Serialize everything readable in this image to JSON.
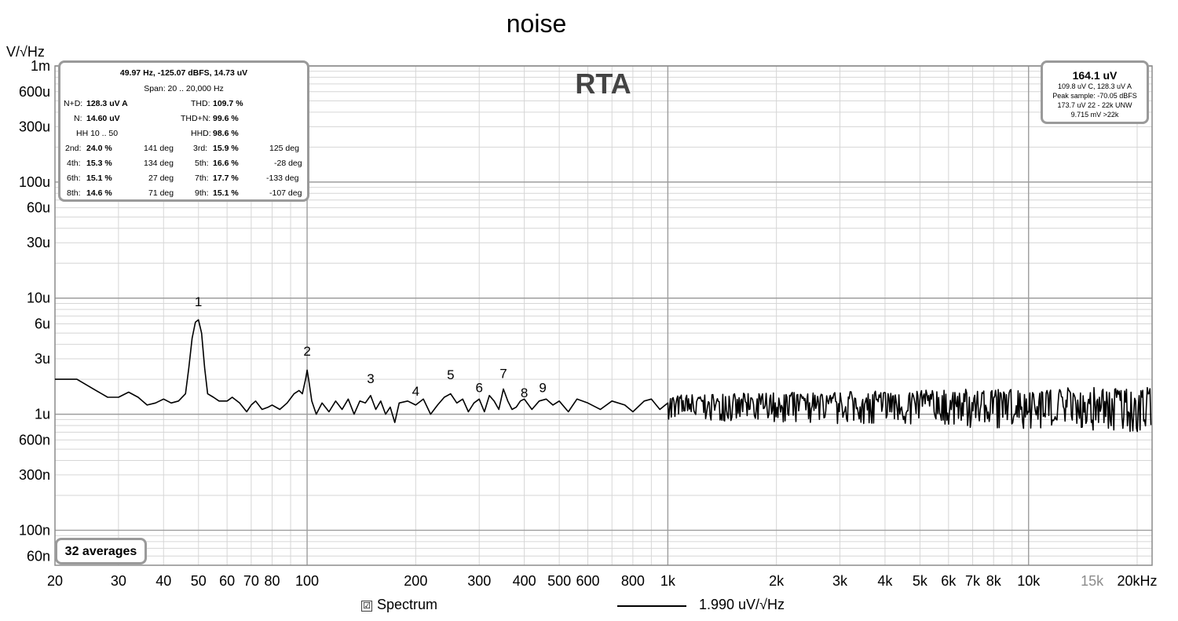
{
  "window": {
    "title": "noise",
    "unit_label": "V/√Hz",
    "graph_type": "RTA"
  },
  "stats_box": {
    "cursor": "49.97 Hz, -125.07 dBFS, 14.73 uV",
    "span": "Span: 20 .. 20,000 Hz",
    "nd_label": "N+D:",
    "nd_value": "128.3 uV A",
    "thd_label": "THD:",
    "thd_value": "109.7 %",
    "n_label": "N:",
    "n_value": "14.60 uV",
    "thdn_label": "THD+N:",
    "thdn_value": "99.6 %",
    "hh_label": "HH 10 .. 50",
    "hhd_label": "HHD:",
    "hhd_value": "98.6 %",
    "harmonics": [
      {
        "a_label": "2nd:",
        "a_value": "24.0 %",
        "a_phase": "141 deg",
        "b_label": "3rd:",
        "b_value": "15.9 %",
        "b_phase": "125 deg"
      },
      {
        "a_label": "4th:",
        "a_value": "15.3 %",
        "a_phase": "134 deg",
        "b_label": "5th:",
        "b_value": "16.6 %",
        "b_phase": "-28 deg"
      },
      {
        "a_label": "6th:",
        "a_value": "15.1 %",
        "a_phase": "27 deg",
        "b_label": "7th:",
        "b_value": "17.7 %",
        "b_phase": "-133 deg"
      },
      {
        "a_label": "8th:",
        "a_value": "14.6 %",
        "a_phase": "71 deg",
        "b_label": "9th:",
        "b_value": "15.1 %",
        "b_phase": "-107 deg"
      }
    ]
  },
  "rms_box": {
    "main": "164.1 uV",
    "line1": "109.8 uV C, 128.3 uV A",
    "line2": "Peak sample: -70.05 dBFS",
    "line3": "173.7 uV 22 - 22k UNW",
    "line4": "9.715 mV >22k"
  },
  "averages_label": "32 averages",
  "legend": {
    "checkbox_glyph": "☑",
    "series_name": "Spectrum",
    "series_value": "1.990 uV/√Hz"
  },
  "colors": {
    "trace": "#000000",
    "major_grid": "#9e9e9e",
    "minor_grid": "#d6d6d6",
    "box_border": "#9a9a9a",
    "dim_tick": "#8c8c8c"
  },
  "chart_data": {
    "type": "line",
    "x_scale": "log",
    "y_scale": "log",
    "xlim": [
      20,
      22000
    ],
    "ylim": [
      5e-08,
      0.001
    ],
    "x_unit": "Hz",
    "y_unit": "V/√Hz",
    "grid": true,
    "x_ticks": [
      {
        "value": 20,
        "label": "20"
      },
      {
        "value": 30,
        "label": "30"
      },
      {
        "value": 40,
        "label": "40"
      },
      {
        "value": 50,
        "label": "50"
      },
      {
        "value": 60,
        "label": "60"
      },
      {
        "value": 70,
        "label": "70"
      },
      {
        "value": 80,
        "label": "80"
      },
      {
        "value": 100,
        "label": "100"
      },
      {
        "value": 200,
        "label": "200"
      },
      {
        "value": 300,
        "label": "300"
      },
      {
        "value": 400,
        "label": "400"
      },
      {
        "value": 500,
        "label": "500"
      },
      {
        "value": 600,
        "label": "600"
      },
      {
        "value": 800,
        "label": "800"
      },
      {
        "value": 1000,
        "label": "1k"
      },
      {
        "value": 2000,
        "label": "2k"
      },
      {
        "value": 3000,
        "label": "3k"
      },
      {
        "value": 4000,
        "label": "4k"
      },
      {
        "value": 5000,
        "label": "5k"
      },
      {
        "value": 6000,
        "label": "6k"
      },
      {
        "value": 7000,
        "label": "7k"
      },
      {
        "value": 8000,
        "label": "8k"
      },
      {
        "value": 10000,
        "label": "10k"
      },
      {
        "value": 15000,
        "label": "15k",
        "dim": true
      },
      {
        "value": 20000,
        "label": "20kHz"
      }
    ],
    "y_ticks": [
      {
        "value": 0.001,
        "label": "1m"
      },
      {
        "value": 0.0006,
        "label": "600u"
      },
      {
        "value": 0.0003,
        "label": "300u"
      },
      {
        "value": 0.0001,
        "label": "100u"
      },
      {
        "value": 6e-05,
        "label": "60u"
      },
      {
        "value": 3e-05,
        "label": "30u"
      },
      {
        "value": 1e-05,
        "label": "10u"
      },
      {
        "value": 6e-06,
        "label": "6u"
      },
      {
        "value": 3e-06,
        "label": "3u"
      },
      {
        "value": 1e-06,
        "label": "1u"
      },
      {
        "value": 6e-07,
        "label": "600n"
      },
      {
        "value": 3e-07,
        "label": "300n"
      },
      {
        "value": 1e-07,
        "label": "100n"
      },
      {
        "value": 6e-08,
        "label": "60n"
      }
    ],
    "series": [
      {
        "name": "Spectrum",
        "x": [
          20,
          23,
          26,
          28,
          30,
          32,
          34,
          36,
          38,
          40,
          42,
          44,
          46,
          47,
          48,
          49,
          49.97,
          51,
          52,
          53,
          55,
          57,
          60,
          62,
          65,
          68,
          70,
          72,
          75,
          78,
          80,
          84,
          88,
          92,
          95,
          97,
          99,
          100,
          101,
          103,
          106,
          110,
          115,
          120,
          125,
          130,
          135,
          140,
          145,
          150,
          155,
          160,
          165,
          170,
          175,
          180,
          190,
          200,
          210,
          220,
          230,
          240,
          250,
          260,
          270,
          280,
          290,
          300,
          310,
          320,
          330,
          340,
          350,
          360,
          370,
          380,
          390,
          400,
          420,
          440,
          460,
          480,
          500,
          530,
          560,
          600,
          650,
          700,
          760,
          800,
          860,
          900,
          950,
          1000
        ],
        "y": [
          2e-06,
          2e-06,
          1.6e-06,
          1.4e-06,
          1.4e-06,
          1.55e-06,
          1.4e-06,
          1.2e-06,
          1.25e-06,
          1.35e-06,
          1.25e-06,
          1.3e-06,
          1.5e-06,
          2.5e-06,
          4.5e-06,
          6.2e-06,
          6.5e-06,
          5e-06,
          2.5e-06,
          1.5e-06,
          1.4e-06,
          1.3e-06,
          1.3e-06,
          1.4e-06,
          1.25e-06,
          1.05e-06,
          1.2e-06,
          1.3e-06,
          1.1e-06,
          1.15e-06,
          1.2e-06,
          1.1e-06,
          1.25e-06,
          1.5e-06,
          1.6e-06,
          1.5e-06,
          2e-06,
          2.4e-06,
          2e-06,
          1.3e-06,
          1e-06,
          1.25e-06,
          1.05e-06,
          1.3e-06,
          1.1e-06,
          1.35e-06,
          1e-06,
          1.3e-06,
          1.25e-06,
          1.45e-06,
          1.1e-06,
          1.3e-06,
          1e-06,
          1.15e-06,
          8.5e-07,
          1.25e-06,
          1.3e-06,
          1.2e-06,
          1.35e-06,
          1e-06,
          1.2e-06,
          1.4e-06,
          1.5e-06,
          1.25e-06,
          1.35e-06,
          1.05e-06,
          1.25e-06,
          1.35e-06,
          1.05e-06,
          1.45e-06,
          1.3e-06,
          1.1e-06,
          1.65e-06,
          1.3e-06,
          1.1e-06,
          1.15e-06,
          1.3e-06,
          1.35e-06,
          1.1e-06,
          1.3e-06,
          1.35e-06,
          1.2e-06,
          1.3e-06,
          1.05e-06,
          1.35e-06,
          1.25e-06,
          1.1e-06,
          1.3e-06,
          1.2e-06,
          1.05e-06,
          1.3e-06,
          1.35e-06,
          1.1e-06,
          1.25e-06
        ],
        "noise_floor_above_1k": {
          "x_range": [
            1000,
            22000
          ],
          "center": 1.2e-06,
          "spread_low": 7e-07,
          "spread_high": 1.75e-06
        }
      }
    ],
    "harmonic_markers": [
      {
        "label": "1",
        "x": 49.97,
        "y": 8.5e-06
      },
      {
        "label": "2",
        "x": 100,
        "y": 3.2e-06
      },
      {
        "label": "3",
        "x": 150,
        "y": 1.85e-06
      },
      {
        "label": "4",
        "x": 200,
        "y": 1.45e-06
      },
      {
        "label": "5",
        "x": 250,
        "y": 2e-06
      },
      {
        "label": "6",
        "x": 300,
        "y": 1.55e-06
      },
      {
        "label": "7",
        "x": 350,
        "y": 2.05e-06
      },
      {
        "label": "8",
        "x": 400,
        "y": 1.4e-06
      },
      {
        "label": "9",
        "x": 450,
        "y": 1.55e-06
      }
    ]
  }
}
